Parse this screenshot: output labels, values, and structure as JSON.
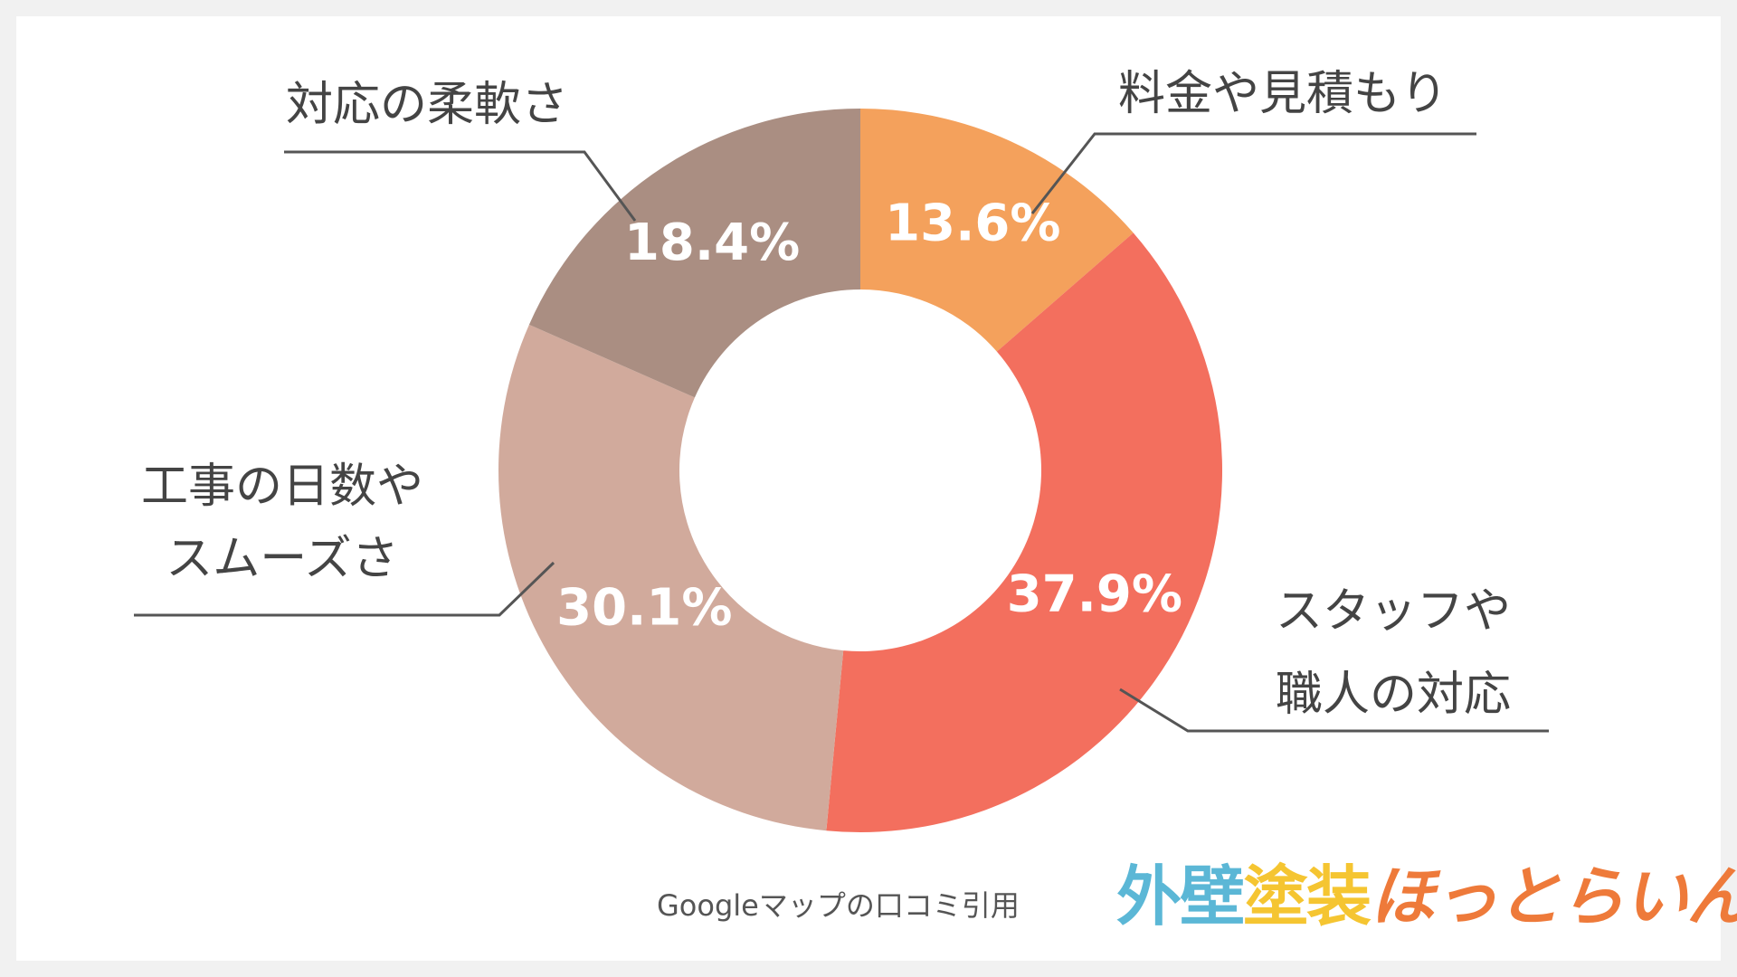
{
  "chart_data": {
    "type": "pie",
    "donut": true,
    "slices": [
      {
        "label": "料金や見積もり",
        "value": 13.6,
        "value_text": "13.6%",
        "color": "#f4a15c"
      },
      {
        "label": "スタッフや\n職人の対応",
        "value": 37.9,
        "value_text": "37.9%",
        "color": "#f36f5e"
      },
      {
        "label": "工事の日数や\nスムーズさ",
        "value": 30.1,
        "value_text": "30.1%",
        "color": "#d1aa9c"
      },
      {
        "label": "対応の柔軟さ",
        "value": 18.4,
        "value_text": "18.4%",
        "color": "#aa8e82"
      }
    ],
    "start": "top",
    "direction": "clockwise"
  },
  "source_note": "Googleマップの口コミ引用",
  "logo": {
    "part1": "外壁",
    "part2": "塗装",
    "part3": "ほっとらいん",
    "colors": {
      "part1": "#5bb7d6",
      "part2": "#f5c531",
      "part3": "#ee7a3a"
    }
  }
}
